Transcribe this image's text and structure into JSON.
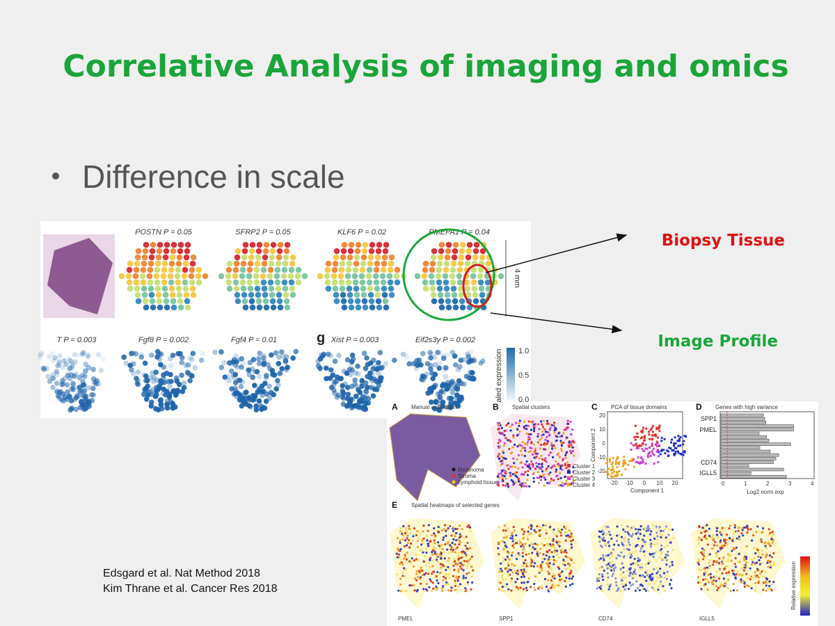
{
  "title": "Correlative Analysis of imaging and omics",
  "bullet": "Difference in scale",
  "annotations": [
    "Biopsy Tissue",
    "Image Profile"
  ],
  "citations": [
    "Edsgard et al. Nat Method 2018",
    "Kim Thrane et al. Cancer Res 2018"
  ],
  "figure_1": {
    "top_panels": [
      "POSTN P = 0.05",
      "SFRP2 P = 0.05",
      "KLF6 P = 0.02",
      "PMEPA1 P = 0.04"
    ],
    "scale_label": "4 mm",
    "panel_letter": "g",
    "bottom_panels": [
      "T P = 0.003",
      "Fgf8 P = 0.002",
      "Fgf4 P = 0.01",
      "Xist P = 0.003",
      "Eif2s3y P = 0.002"
    ],
    "colorbar_label": "aled expression",
    "colorbar_ticks": [
      "1.0",
      "0.5",
      "0.0"
    ]
  },
  "figure_2": {
    "panels": [
      {
        "letter": "A",
        "title": "Manual annotation"
      },
      {
        "letter": "B",
        "title": "Spatial clusters"
      },
      {
        "letter": "C",
        "title": "PCA of tissue domains"
      },
      {
        "letter": "D",
        "title": "Genes with high variance"
      },
      {
        "letter": "E",
        "title": "Spatial heatmaps of selected genes"
      }
    ],
    "annotation_legend": [
      "Melanoma",
      "Stroma",
      "Lymphoid tissue"
    ],
    "cluster_legend": [
      "Cluster 1",
      "Cluster 2",
      "Cluster 3",
      "Cluster 4"
    ],
    "pca_xlabel": "Component 1",
    "pca_ylabel": "Component 2",
    "pca_xticks": [
      -20,
      -10,
      0,
      10,
      20
    ],
    "pca_yticks": [
      20,
      10,
      0,
      -10,
      -20
    ],
    "gene_labels": [
      "SPP1",
      "PMEL",
      "CD74",
      "IGLL5"
    ],
    "variance_xlabel": "Log2 norm exp",
    "variance_xticks": [
      0,
      1,
      2,
      3,
      4
    ],
    "heatmap_genes": [
      "PMEL",
      "SPP1",
      "CD74",
      "IGLL5"
    ],
    "heatmap_colorbar_label": "Relative expression"
  }
}
